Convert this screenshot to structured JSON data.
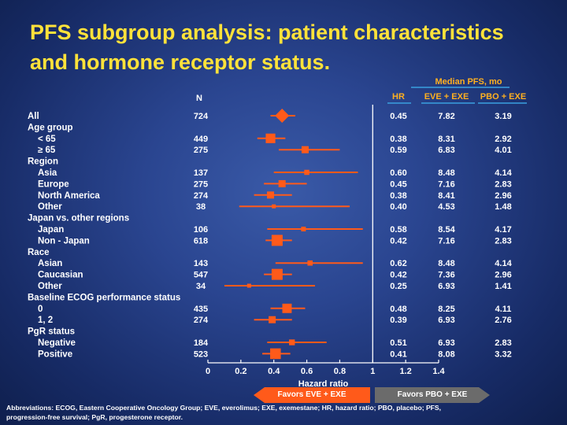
{
  "title": {
    "line1": "PFS subgroup analysis: patient characteristics",
    "line2": "and hormone receptor status."
  },
  "colors": {
    "accent": "#ff5a1a",
    "title": "#ffe23a",
    "header": "#ffb020",
    "rule": "#3aa0e0",
    "arrow_gray": "#6b6b6b"
  },
  "chart_data": {
    "type": "forest",
    "xlabel": "Hazard ratio",
    "xlim": [
      0,
      1.4
    ],
    "xticks": [
      "0",
      "0.2",
      "0.4",
      "0.6",
      "0.8",
      "1",
      "1.2",
      "1.4"
    ],
    "reference_line": 1,
    "headers": {
      "n": "N",
      "hr": "HR",
      "median_group": "Median PFS, mo",
      "eve": "EVE + EXE",
      "pbo": "PBO + EXE"
    },
    "rows": [
      {
        "label": "All",
        "indent": false,
        "n": "724",
        "hr": 0.45,
        "lo": 0.38,
        "hi": 0.53,
        "hr_text": "0.45",
        "eve": "7.82",
        "pbo": "3.19",
        "marker": "diamond"
      },
      {
        "label": "Age group",
        "indent": false,
        "heading": true
      },
      {
        "label": "< 65",
        "indent": true,
        "n": "449",
        "hr": 0.38,
        "lo": 0.3,
        "hi": 0.47,
        "hr_text": "0.38",
        "eve": "8.31",
        "pbo": "2.92"
      },
      {
        "label": "≥ 65",
        "indent": true,
        "n": "275",
        "hr": 0.59,
        "lo": 0.43,
        "hi": 0.8,
        "hr_text": "0.59",
        "eve": "6.83",
        "pbo": "4.01"
      },
      {
        "label": "Region",
        "indent": false,
        "heading": true
      },
      {
        "label": "Asia",
        "indent": true,
        "n": "137",
        "hr": 0.6,
        "lo": 0.4,
        "hi": 0.91,
        "hr_text": "0.60",
        "eve": "8.48",
        "pbo": "4.14"
      },
      {
        "label": "Europe",
        "indent": true,
        "n": "275",
        "hr": 0.45,
        "lo": 0.34,
        "hi": 0.6,
        "hr_text": "0.45",
        "eve": "7.16",
        "pbo": "2.83"
      },
      {
        "label": "North America",
        "indent": true,
        "n": "274",
        "hr": 0.38,
        "lo": 0.28,
        "hi": 0.51,
        "hr_text": "0.38",
        "eve": "8.41",
        "pbo": "2.96"
      },
      {
        "label": "Other",
        "indent": true,
        "n": "38",
        "hr": 0.4,
        "lo": 0.19,
        "hi": 0.86,
        "hr_text": "0.40",
        "eve": "4.53",
        "pbo": "1.48"
      },
      {
        "label": "Japan vs. other regions",
        "indent": false,
        "heading": true
      },
      {
        "label": "Japan",
        "indent": true,
        "n": "106",
        "hr": 0.58,
        "lo": 0.36,
        "hi": 0.94,
        "hr_text": "0.58",
        "eve": "8.54",
        "pbo": "4.17"
      },
      {
        "label": "Non - Japan",
        "indent": true,
        "n": "618",
        "hr": 0.42,
        "lo": 0.35,
        "hi": 0.51,
        "hr_text": "0.42",
        "eve": "7.16",
        "pbo": "2.83"
      },
      {
        "label": "Race",
        "indent": false,
        "heading": true
      },
      {
        "label": "Asian",
        "indent": true,
        "n": "143",
        "hr": 0.62,
        "lo": 0.41,
        "hi": 0.94,
        "hr_text": "0.62",
        "eve": "8.48",
        "pbo": "4.14"
      },
      {
        "label": "Caucasian",
        "indent": true,
        "n": "547",
        "hr": 0.42,
        "lo": 0.34,
        "hi": 0.51,
        "hr_text": "0.42",
        "eve": "7.36",
        "pbo": "2.96"
      },
      {
        "label": "Other",
        "indent": true,
        "n": "34",
        "hr": 0.25,
        "lo": 0.1,
        "hi": 0.65,
        "hr_text": "0.25",
        "eve": "6.93",
        "pbo": "1.41"
      },
      {
        "label": "Baseline ECOG performance status",
        "indent": false,
        "heading": true
      },
      {
        "label": "0",
        "indent": true,
        "n": "435",
        "hr": 0.48,
        "lo": 0.38,
        "hi": 0.59,
        "hr_text": "0.48",
        "eve": "8.25",
        "pbo": "4.11"
      },
      {
        "label": "1, 2",
        "indent": true,
        "n": "274",
        "hr": 0.39,
        "lo": 0.28,
        "hi": 0.51,
        "hr_text": "0.39",
        "eve": "6.93",
        "pbo": "2.76"
      },
      {
        "label": "PgR status",
        "indent": false,
        "heading": true
      },
      {
        "label": "Negative",
        "indent": true,
        "n": "184",
        "hr": 0.51,
        "lo": 0.36,
        "hi": 0.72,
        "hr_text": "0.51",
        "eve": "6.93",
        "pbo": "2.83"
      },
      {
        "label": "Positive",
        "indent": true,
        "n": "523",
        "hr": 0.41,
        "lo": 0.33,
        "hi": 0.5,
        "hr_text": "0.41",
        "eve": "8.08",
        "pbo": "3.32"
      }
    ]
  },
  "favors": {
    "left": "Favors EVE + EXE",
    "right": "Favors PBO + EXE"
  },
  "abbreviations": {
    "line1": "Abbreviations: ECOG, Eastern Cooperative Oncology Group; EVE, everolimus; EXE, exemestane; HR, hazard ratio; PBO, placebo; PFS,",
    "line2": "progression-free survival; PgR, progesterone receptor."
  }
}
